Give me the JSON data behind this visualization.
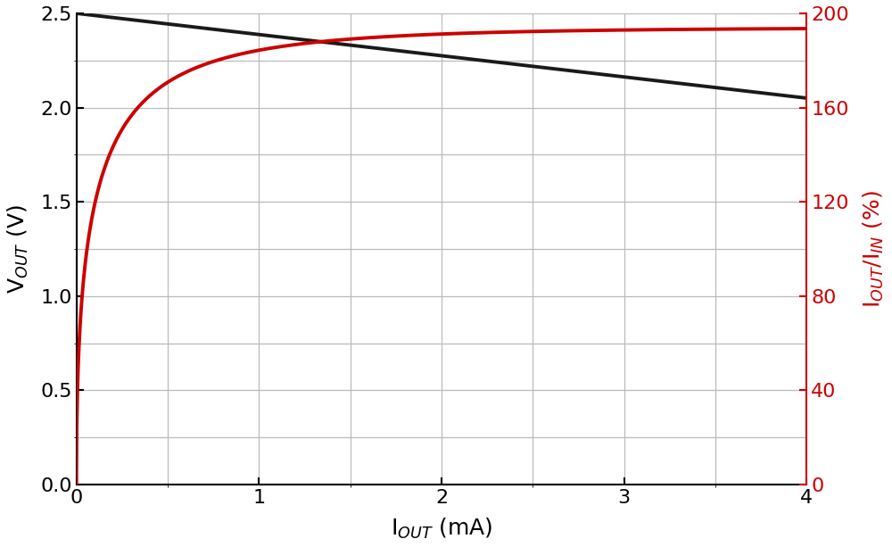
{
  "xlim": [
    0,
    4
  ],
  "ylim_left": [
    0,
    2.5
  ],
  "ylim_right": [
    0,
    200
  ],
  "xlabel": "I$_{OUT}$ (mA)",
  "ylabel_left": "V$_{OUT}$ (V)",
  "ylabel_right": "I$_{OUT}$/I$_{IN}$ (%)",
  "left_yticks": [
    0,
    0.5,
    1.0,
    1.5,
    2.0,
    2.5
  ],
  "right_yticks": [
    0,
    40,
    80,
    120,
    160,
    200
  ],
  "xticks": [
    0,
    1,
    2,
    3,
    4
  ],
  "grid_color": "#bbbbbb",
  "line_black_color": "#1a1a1a",
  "line_red_color": "#cc0000",
  "line_width": 2.8,
  "vout_start": 2.5,
  "vout_end": 2.05,
  "iout_iin_asymptote": 194,
  "iout_iin_rise_rate": 3.0,
  "font_size_ticks": 16,
  "font_size_labels": 18
}
